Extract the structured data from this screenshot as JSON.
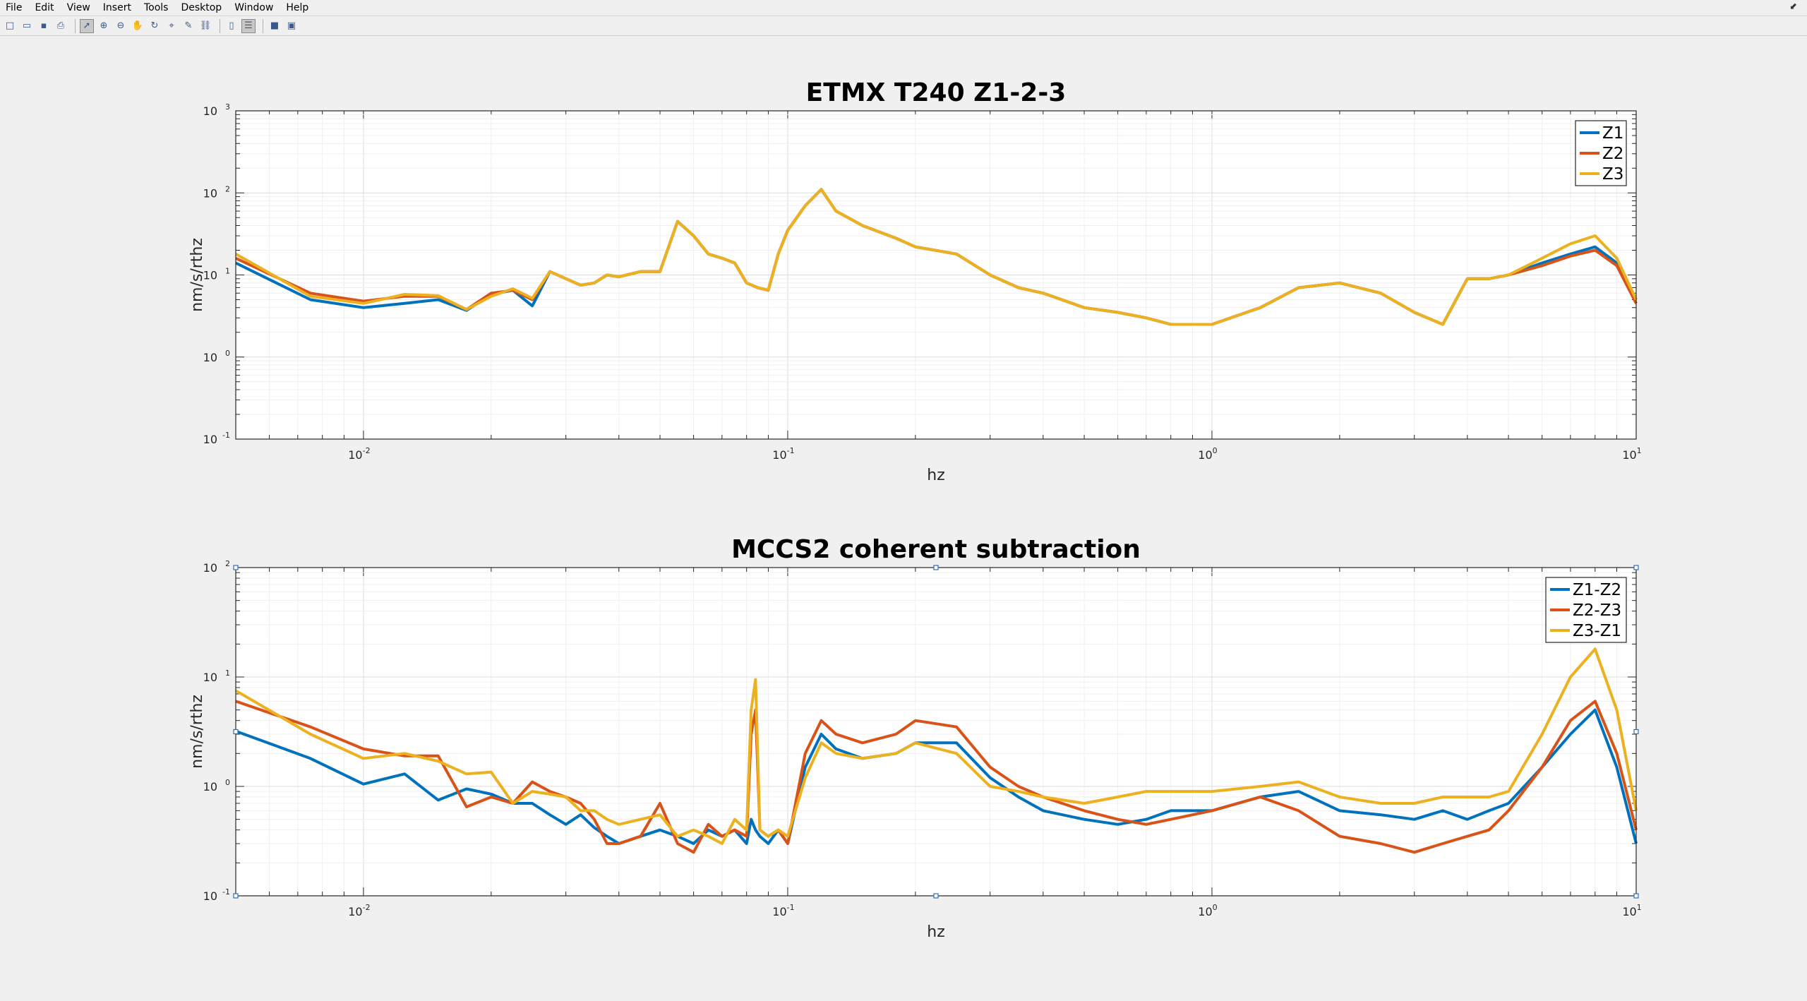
{
  "menubar": {
    "items": [
      "File",
      "Edit",
      "View",
      "Insert",
      "Tools",
      "Desktop",
      "Window",
      "Help"
    ],
    "window_control": "⬋"
  },
  "toolbar": {
    "buttons": [
      {
        "icon": "new-figure-icon",
        "glyph": "□"
      },
      {
        "icon": "open-file-icon",
        "glyph": "▭"
      },
      {
        "icon": "save-icon",
        "glyph": "▪"
      },
      {
        "icon": "print-icon",
        "glyph": "⎙"
      },
      {
        "icon": "edit-plot-arrow-icon",
        "glyph": "➚",
        "active": true
      },
      {
        "icon": "zoom-in-icon",
        "glyph": "⊕"
      },
      {
        "icon": "zoom-out-icon",
        "glyph": "⊖"
      },
      {
        "icon": "pan-icon",
        "glyph": "✋"
      },
      {
        "icon": "rotate-3d-icon",
        "glyph": "↻"
      },
      {
        "icon": "data-cursor-icon",
        "glyph": "⌖"
      },
      {
        "icon": "brush-icon",
        "glyph": "✎"
      },
      {
        "icon": "link-plot-icon",
        "glyph": "⛓"
      },
      {
        "icon": "insert-colorbar-icon",
        "glyph": "▯"
      },
      {
        "icon": "insert-legend-icon",
        "glyph": "☰",
        "active": true
      },
      {
        "icon": "hide-plot-tools-icon",
        "glyph": "■"
      },
      {
        "icon": "show-plot-tools-icon",
        "glyph": "▣"
      }
    ]
  },
  "colors": {
    "Z1": "#0072bd",
    "Z2": "#d95319",
    "Z3": "#edb120"
  },
  "chart_data": [
    {
      "type": "line",
      "title": "ETMX T240 Z1-2-3",
      "xlabel": "hz",
      "ylabel": "nm/s/rthz",
      "xscale": "log",
      "yscale": "log",
      "xlim": [
        0.005,
        10
      ],
      "ylim": [
        0.1,
        1000
      ],
      "grid": true,
      "legend_position": "top-right",
      "xticks": [
        {
          "base": "10",
          "exp": "-2"
        },
        {
          "base": "10",
          "exp": "-1"
        },
        {
          "base": "10",
          "exp": "0"
        },
        {
          "base": "10",
          "exp": "1"
        }
      ],
      "yticks": [
        {
          "base": "10",
          "exp": "-1"
        },
        {
          "base": "10",
          "exp": "0"
        },
        {
          "base": "10",
          "exp": "1"
        },
        {
          "base": "10",
          "exp": "2"
        },
        {
          "base": "10",
          "exp": "3"
        }
      ],
      "x": [
        0.005,
        0.0075,
        0.01,
        0.0125,
        0.015,
        0.0175,
        0.02,
        0.0225,
        0.025,
        0.0275,
        0.03,
        0.0325,
        0.035,
        0.0375,
        0.04,
        0.045,
        0.05,
        0.055,
        0.06,
        0.065,
        0.07,
        0.075,
        0.08,
        0.085,
        0.09,
        0.095,
        0.1,
        0.11,
        0.12,
        0.13,
        0.15,
        0.18,
        0.2,
        0.25,
        0.3,
        0.35,
        0.4,
        0.5,
        0.6,
        0.7,
        0.8,
        1.0,
        1.3,
        1.6,
        2.0,
        2.5,
        3.0,
        3.5,
        4.0,
        4.5,
        5.0,
        6.0,
        7.0,
        8.0,
        9.0,
        10.0
      ],
      "series": [
        {
          "name": "Z1",
          "values": [
            14,
            5,
            4,
            4.5,
            5,
            3.7,
            5.8,
            6.5,
            4.2,
            11,
            9,
            7.5,
            8,
            10,
            9.5,
            11,
            11,
            45,
            30,
            18,
            16,
            14,
            8,
            7,
            6.5,
            18,
            35,
            70,
            110,
            60,
            40,
            28,
            22,
            18,
            10,
            7,
            6,
            4,
            3.5,
            3,
            2.5,
            2.5,
            4,
            7,
            8,
            6,
            3.5,
            2.5,
            9,
            9,
            10,
            14,
            18,
            22,
            14,
            5
          ]
        },
        {
          "name": "Z2",
          "values": [
            16,
            6,
            4.8,
            5.5,
            5.5,
            3.8,
            6,
            6.5,
            5,
            11,
            9,
            7.5,
            8,
            10,
            9.5,
            11,
            11,
            45,
            30,
            18,
            16,
            14,
            8,
            7,
            6.5,
            18,
            35,
            70,
            110,
            60,
            40,
            28,
            22,
            18,
            10,
            7,
            6,
            4,
            3.5,
            3,
            2.5,
            2.5,
            4,
            7,
            8,
            6,
            3.5,
            2.5,
            9,
            9,
            10,
            13,
            17,
            20,
            13,
            4.5
          ]
        },
        {
          "name": "Z3",
          "values": [
            18,
            5.5,
            4.5,
            5.8,
            5.6,
            3.8,
            5.5,
            6.8,
            5.2,
            11,
            9,
            7.5,
            8,
            10,
            9.5,
            11,
            11,
            45,
            30,
            18,
            16,
            14,
            8,
            7,
            6.5,
            18,
            35,
            70,
            110,
            60,
            40,
            28,
            22,
            18,
            10,
            7,
            6,
            4,
            3.5,
            3,
            2.5,
            2.5,
            4,
            7,
            8,
            6,
            3.5,
            2.5,
            9,
            9,
            10,
            16,
            24,
            30,
            16,
            5
          ]
        }
      ]
    },
    {
      "type": "line",
      "title": "MCCS2 coherent subtraction",
      "xlabel": "hz",
      "ylabel": "nm/s/rthz",
      "xscale": "log",
      "yscale": "log",
      "xlim": [
        0.005,
        10
      ],
      "ylim": [
        0.1,
        100
      ],
      "grid": true,
      "legend_position": "top-right",
      "xticks": [
        {
          "base": "10",
          "exp": "-2"
        },
        {
          "base": "10",
          "exp": "-1"
        },
        {
          "base": "10",
          "exp": "0"
        },
        {
          "base": "10",
          "exp": "1"
        }
      ],
      "yticks": [
        {
          "base": "10",
          "exp": "-1"
        },
        {
          "base": "10",
          "exp": "0"
        },
        {
          "base": "10",
          "exp": "1"
        },
        {
          "base": "10",
          "exp": "2"
        }
      ],
      "x": [
        0.005,
        0.0075,
        0.01,
        0.0125,
        0.015,
        0.0175,
        0.02,
        0.0225,
        0.025,
        0.0275,
        0.03,
        0.0325,
        0.035,
        0.0375,
        0.04,
        0.045,
        0.05,
        0.055,
        0.06,
        0.065,
        0.07,
        0.075,
        0.08,
        0.082,
        0.084,
        0.086,
        0.09,
        0.095,
        0.1,
        0.11,
        0.12,
        0.13,
        0.15,
        0.18,
        0.2,
        0.25,
        0.3,
        0.35,
        0.4,
        0.5,
        0.6,
        0.7,
        0.8,
        1.0,
        1.3,
        1.6,
        2.0,
        2.5,
        3.0,
        3.5,
        4.0,
        4.5,
        5.0,
        6.0,
        7.0,
        8.0,
        9.0,
        10.0
      ],
      "series": [
        {
          "name": "Z1-Z2",
          "values": [
            3.2,
            1.8,
            1.05,
            1.3,
            0.75,
            0.95,
            0.85,
            0.7,
            0.7,
            0.55,
            0.45,
            0.55,
            0.42,
            0.35,
            0.3,
            0.35,
            0.4,
            0.35,
            0.3,
            0.4,
            0.35,
            0.4,
            0.3,
            0.5,
            0.4,
            0.35,
            0.3,
            0.4,
            0.3,
            1.5,
            3,
            2.2,
            1.8,
            2,
            2.5,
            2.5,
            1.2,
            0.8,
            0.6,
            0.5,
            0.45,
            0.5,
            0.6,
            0.6,
            0.8,
            0.9,
            0.6,
            0.55,
            0.5,
            0.6,
            0.5,
            0.6,
            0.7,
            1.5,
            3,
            5,
            1.5,
            0.3
          ]
        },
        {
          "name": "Z2-Z3",
          "values": [
            6,
            3.5,
            2.2,
            1.9,
            1.9,
            0.65,
            0.8,
            0.7,
            1.1,
            0.9,
            0.8,
            0.7,
            0.5,
            0.3,
            0.3,
            0.35,
            0.7,
            0.3,
            0.25,
            0.45,
            0.35,
            0.4,
            0.35,
            3,
            5,
            0.4,
            0.35,
            0.4,
            0.3,
            2,
            4,
            3,
            2.5,
            3,
            4,
            3.5,
            1.5,
            1,
            0.8,
            0.6,
            0.5,
            0.45,
            0.5,
            0.6,
            0.8,
            0.6,
            0.35,
            0.3,
            0.25,
            0.3,
            0.35,
            0.4,
            0.6,
            1.5,
            4,
            6,
            2,
            0.4
          ]
        },
        {
          "name": "Z3-Z1",
          "values": [
            7.5,
            3,
            1.8,
            2,
            1.7,
            1.3,
            1.35,
            0.7,
            0.9,
            0.85,
            0.8,
            0.6,
            0.6,
            0.5,
            0.45,
            0.5,
            0.55,
            0.35,
            0.4,
            0.35,
            0.3,
            0.5,
            0.4,
            5,
            9.5,
            0.4,
            0.35,
            0.4,
            0.35,
            1.2,
            2.5,
            2,
            1.8,
            2,
            2.5,
            2,
            1,
            0.9,
            0.8,
            0.7,
            0.8,
            0.9,
            0.9,
            0.9,
            1,
            1.1,
            0.8,
            0.7,
            0.7,
            0.8,
            0.8,
            0.8,
            0.9,
            3,
            10,
            18,
            5,
            0.6
          ]
        }
      ]
    }
  ]
}
